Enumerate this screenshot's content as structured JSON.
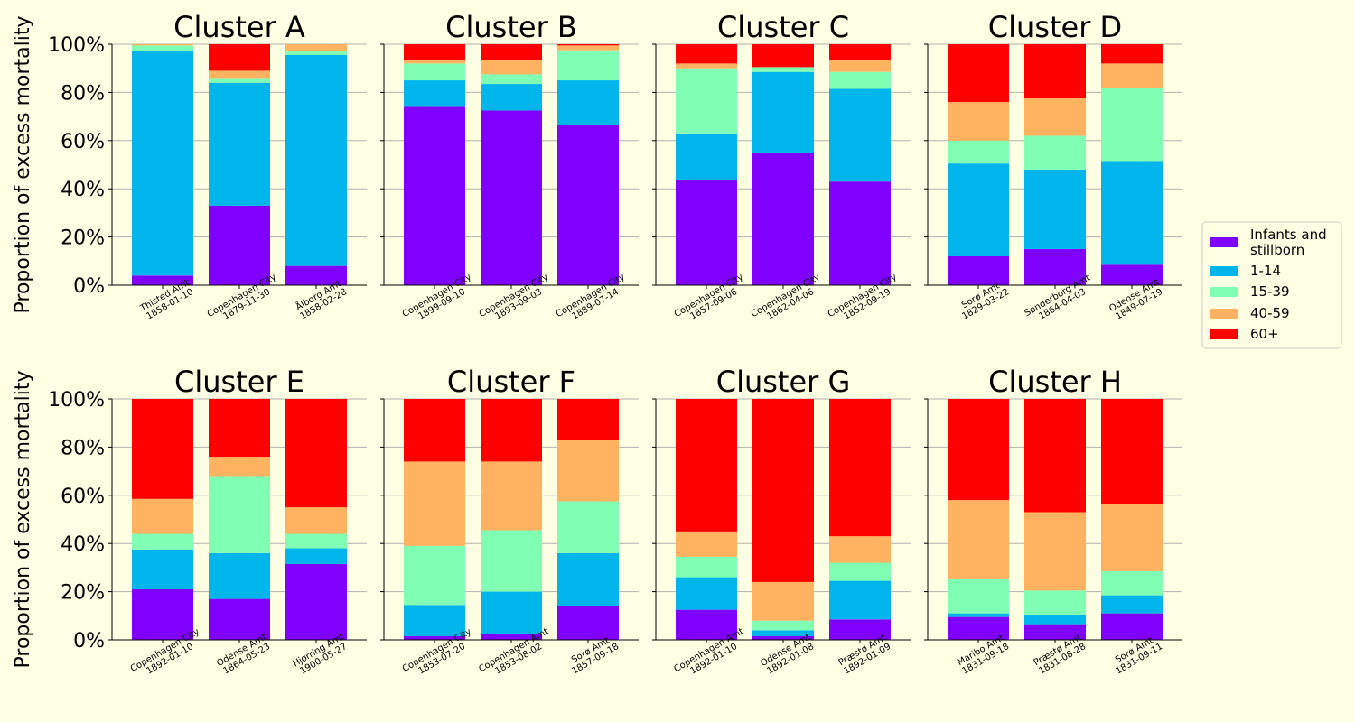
{
  "figure": {
    "background": "#ffffe4",
    "ylabel": "Proportion of excess mortality",
    "yticks": [
      "0%",
      "20%",
      "40%",
      "60%",
      "80%",
      "100%"
    ]
  },
  "legend": {
    "placement": "right",
    "entries": [
      {
        "label": "Infants and\nstillborn",
        "color": "#8000ff"
      },
      {
        "label": "1-14",
        "color": "#00b5eb"
      },
      {
        "label": "15-39",
        "color": "#80ffb4"
      },
      {
        "label": "40-59",
        "color": "#ffb360"
      },
      {
        "label": "60+",
        "color": "#ff0000"
      }
    ]
  },
  "chart_data": [
    {
      "type": "bar",
      "stacked": true,
      "title": "Cluster A",
      "ylim": [
        0,
        1
      ],
      "grid": "y",
      "categories": [
        "Thisted Amt\n1858-01-10",
        "Copenhagen City\n1879-11-30",
        "Ålborg Amt\n1858-02-28"
      ],
      "series": [
        {
          "name": "Infants and stillborn",
          "values": [
            0.04,
            0.33,
            0.08
          ]
        },
        {
          "name": "1-14",
          "values": [
            0.93,
            0.51,
            0.875
          ]
        },
        {
          "name": "15-39",
          "values": [
            0.025,
            0.02,
            0.015
          ]
        },
        {
          "name": "40-59",
          "values": [
            0.005,
            0.03,
            0.03
          ]
        },
        {
          "name": "60+",
          "values": [
            0.0,
            0.11,
            0.0
          ]
        }
      ]
    },
    {
      "type": "bar",
      "stacked": true,
      "title": "Cluster B",
      "ylim": [
        0,
        1
      ],
      "grid": "y",
      "categories": [
        "Copenhagen City\n1899-09-10",
        "Copenhagen City\n1893-09-03",
        "Copenhagen City\n1889-07-14"
      ],
      "series": [
        {
          "name": "Infants and stillborn",
          "values": [
            0.74,
            0.725,
            0.665
          ]
        },
        {
          "name": "1-14",
          "values": [
            0.11,
            0.11,
            0.185
          ]
        },
        {
          "name": "15-39",
          "values": [
            0.07,
            0.04,
            0.125
          ]
        },
        {
          "name": "40-59",
          "values": [
            0.015,
            0.06,
            0.02
          ]
        },
        {
          "name": "60+",
          "values": [
            0.065,
            0.065,
            0.005
          ]
        }
      ]
    },
    {
      "type": "bar",
      "stacked": true,
      "title": "Cluster C",
      "ylim": [
        0,
        1
      ],
      "grid": "y",
      "categories": [
        "Copenhagen City\n1857-09-06",
        "Copenhagen City\n1862-04-06",
        "Copenhagen City\n1852-09-19"
      ],
      "series": [
        {
          "name": "Infants and stillborn",
          "values": [
            0.435,
            0.55,
            0.43
          ]
        },
        {
          "name": "1-14",
          "values": [
            0.195,
            0.335,
            0.385
          ]
        },
        {
          "name": "15-39",
          "values": [
            0.27,
            0.02,
            0.07
          ]
        },
        {
          "name": "40-59",
          "values": [
            0.02,
            0.0,
            0.05
          ]
        },
        {
          "name": "60+",
          "values": [
            0.08,
            0.095,
            0.065
          ]
        }
      ]
    },
    {
      "type": "bar",
      "stacked": true,
      "title": "Cluster D",
      "ylim": [
        0,
        1
      ],
      "grid": "y",
      "categories": [
        "Sorø Amt\n1829-03-22",
        "Sønderborg Amt\n1864-04-03",
        "Odense Amt\n1849-07-19"
      ],
      "series": [
        {
          "name": "Infants and stillborn",
          "values": [
            0.12,
            0.15,
            0.085
          ]
        },
        {
          "name": "1-14",
          "values": [
            0.385,
            0.33,
            0.43
          ]
        },
        {
          "name": "15-39",
          "values": [
            0.095,
            0.14,
            0.305
          ]
        },
        {
          "name": "40-59",
          "values": [
            0.16,
            0.155,
            0.1
          ]
        },
        {
          "name": "60+",
          "values": [
            0.24,
            0.225,
            0.08
          ]
        }
      ]
    },
    {
      "type": "bar",
      "stacked": true,
      "title": "Cluster E",
      "ylim": [
        0,
        1
      ],
      "grid": "y",
      "categories": [
        "Copenhagen City\n1892-01-10",
        "Odense Amt\n1864-05-23",
        "Hjørring Amt\n1900-05-27"
      ],
      "series": [
        {
          "name": "Infants and stillborn",
          "values": [
            0.21,
            0.17,
            0.315
          ]
        },
        {
          "name": "1-14",
          "values": [
            0.165,
            0.19,
            0.065
          ]
        },
        {
          "name": "15-39",
          "values": [
            0.065,
            0.32,
            0.06
          ]
        },
        {
          "name": "40-59",
          "values": [
            0.145,
            0.08,
            0.11
          ]
        },
        {
          "name": "60+",
          "values": [
            0.415,
            0.24,
            0.45
          ]
        }
      ]
    },
    {
      "type": "bar",
      "stacked": true,
      "title": "Cluster F",
      "ylim": [
        0,
        1
      ],
      "grid": "y",
      "categories": [
        "Copenhagen City\n1853-07-20",
        "Copenhagen Amt\n1853-08-02",
        "Sorø Amt\n1857-09-18"
      ],
      "series": [
        {
          "name": "Infants and stillborn",
          "values": [
            0.015,
            0.025,
            0.14
          ]
        },
        {
          "name": "1-14",
          "values": [
            0.13,
            0.175,
            0.22
          ]
        },
        {
          "name": "15-39",
          "values": [
            0.245,
            0.255,
            0.215
          ]
        },
        {
          "name": "40-59",
          "values": [
            0.35,
            0.285,
            0.255
          ]
        },
        {
          "name": "60+",
          "values": [
            0.26,
            0.26,
            0.17
          ]
        }
      ]
    },
    {
      "type": "bar",
      "stacked": true,
      "title": "Cluster G",
      "ylim": [
        0,
        1
      ],
      "grid": "y",
      "categories": [
        "Copenhagen Amt\n1892-01-10",
        "Odense Amt\n1892-01-08",
        "Præstø Amt\n1892-01-09"
      ],
      "series": [
        {
          "name": "Infants and stillborn",
          "values": [
            0.125,
            0.015,
            0.085
          ]
        },
        {
          "name": "1-14",
          "values": [
            0.135,
            0.025,
            0.16
          ]
        },
        {
          "name": "15-39",
          "values": [
            0.085,
            0.04,
            0.075
          ]
        },
        {
          "name": "40-59",
          "values": [
            0.105,
            0.16,
            0.11
          ]
        },
        {
          "name": "60+",
          "values": [
            0.55,
            0.76,
            0.57
          ]
        }
      ]
    },
    {
      "type": "bar",
      "stacked": true,
      "title": "Cluster H",
      "ylim": [
        0,
        1
      ],
      "grid": "y",
      "categories": [
        "Maribo Amt\n1831-09-18",
        "Præstø Amt\n1831-08-28",
        "Sorø Amt\n1831-09-11"
      ],
      "series": [
        {
          "name": "Infants and stillborn",
          "values": [
            0.095,
            0.065,
            0.11
          ]
        },
        {
          "name": "1-14",
          "values": [
            0.015,
            0.04,
            0.075
          ]
        },
        {
          "name": "15-39",
          "values": [
            0.145,
            0.1,
            0.1
          ]
        },
        {
          "name": "40-59",
          "values": [
            0.325,
            0.325,
            0.28
          ]
        },
        {
          "name": "60+",
          "values": [
            0.42,
            0.47,
            0.435
          ]
        }
      ]
    }
  ]
}
